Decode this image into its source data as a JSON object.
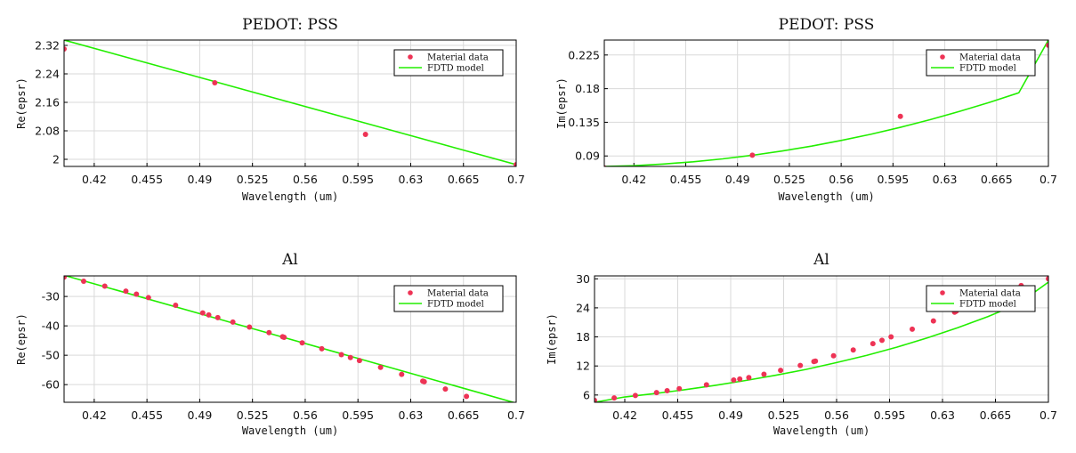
{
  "figure": {
    "colors": {
      "material_marker": "#ee3355",
      "model_line": "#22ee00",
      "grid": "#d9d9d9",
      "axis": "#000000"
    },
    "legend_placement": "top-right"
  },
  "chart_data": [
    {
      "id": "p1",
      "type": "line",
      "title": "PEDOT: PSS",
      "xlabel": "Wavelength (um)",
      "ylabel": "Re(epsr)",
      "xlim": [
        0.4,
        0.7
      ],
      "ylim": [
        1.98,
        2.335
      ],
      "xticks": [
        0.42,
        0.455,
        0.49,
        0.525,
        0.56,
        0.595,
        0.63,
        0.665,
        0.7
      ],
      "xtick_labels": [
        "0.42",
        "0.455",
        "0.49",
        "0.525",
        "0.56",
        "0.595",
        "0.63",
        "0.665",
        "0.7"
      ],
      "yticks": [
        2,
        2.08,
        2.16,
        2.24,
        2.32
      ],
      "ytick_labels": [
        "2",
        "2.08",
        "2.16",
        "2.24",
        "2.32"
      ],
      "grid": true,
      "legend_placement": "top-right",
      "series": [
        {
          "name": "Material data",
          "kind": "markers",
          "x": [
            0.4,
            0.5,
            0.6,
            0.7
          ],
          "y": [
            2.31,
            2.215,
            2.07,
            1.985
          ]
        },
        {
          "name": "FDTD model",
          "kind": "line",
          "x": [
            0.4,
            0.7
          ],
          "y": [
            2.335,
            1.985
          ]
        }
      ]
    },
    {
      "id": "p2",
      "type": "line",
      "title": "PEDOT: PSS",
      "xlabel": "Wavelength (um)",
      "ylabel": "Im(epsr)",
      "xlim": [
        0.4,
        0.7
      ],
      "ylim": [
        0.076,
        0.245
      ],
      "xticks": [
        0.42,
        0.455,
        0.49,
        0.525,
        0.56,
        0.595,
        0.63,
        0.665,
        0.7
      ],
      "xtick_labels": [
        "0.42",
        "0.455",
        "0.49",
        "0.525",
        "0.56",
        "0.595",
        "0.63",
        "0.665",
        "0.7"
      ],
      "yticks": [
        0.09,
        0.135,
        0.18,
        0.225
      ],
      "ytick_labels": [
        "0.09",
        "0.135",
        "0.18",
        "0.225"
      ],
      "grid": true,
      "legend_placement": "top-right",
      "series": [
        {
          "name": "Material data",
          "kind": "markers",
          "x": [
            0.4,
            0.5,
            0.6,
            0.7
          ],
          "y": [
            0.074,
            0.091,
            0.143,
            0.238
          ]
        },
        {
          "name": "FDTD model",
          "kind": "line",
          "x": [
            0.4,
            0.42,
            0.44,
            0.46,
            0.48,
            0.5,
            0.52,
            0.54,
            0.56,
            0.58,
            0.6,
            0.62,
            0.64,
            0.66,
            0.68,
            0.7
          ],
          "y": [
            0.076,
            0.077,
            0.0792,
            0.0822,
            0.0861,
            0.0909,
            0.0966,
            0.1032,
            0.1107,
            0.119,
            0.1283,
            0.1385,
            0.1496,
            0.1616,
            0.1745,
            0.245
          ]
        }
      ]
    },
    {
      "id": "p3",
      "type": "line",
      "title": "Al",
      "xlabel": "Wavelength (um)",
      "ylabel": "Re(epsr)",
      "xlim": [
        0.4,
        0.7
      ],
      "ylim": [
        -66,
        -23
      ],
      "xticks": [
        0.42,
        0.455,
        0.49,
        0.525,
        0.56,
        0.595,
        0.63,
        0.665,
        0.7
      ],
      "xtick_labels": [
        "0.42",
        "0.455",
        "0.49",
        "0.525",
        "0.56",
        "0.595",
        "0.63",
        "0.665",
        "0.7"
      ],
      "yticks": [
        -60,
        -50,
        -40,
        -30
      ],
      "ytick_labels": [
        "-60",
        "-50",
        "-40",
        "-30"
      ],
      "grid": true,
      "legend_placement": "top-right",
      "series": [
        {
          "name": "Material data",
          "kind": "markers",
          "x": [
            0.4,
            0.413,
            0.427,
            0.441,
            0.448,
            0.456,
            0.474,
            0.492,
            0.496,
            0.502,
            0.512,
            0.523,
            0.536,
            0.545,
            0.546,
            0.558,
            0.571,
            0.584,
            0.59,
            0.596,
            0.61,
            0.624,
            0.638,
            0.639,
            0.653,
            0.667
          ],
          "y": [
            -23.4,
            -24.8,
            -26.5,
            -28.2,
            -29.2,
            -30.4,
            -33.0,
            -35.6,
            -36.3,
            -37.2,
            -38.7,
            -40.4,
            -42.3,
            -43.7,
            -43.9,
            -45.8,
            -47.8,
            -49.8,
            -50.8,
            -51.8,
            -54.1,
            -56.5,
            -58.8,
            -59.0,
            -61.5,
            -64.0
          ]
        },
        {
          "name": "FDTD model",
          "kind": "line",
          "x": [
            0.4,
            0.7
          ],
          "y": [
            -22.8,
            -66.3
          ]
        }
      ]
    },
    {
      "id": "p4",
      "type": "line",
      "title": "Al",
      "xlabel": "Wavelength (um)",
      "ylabel": "Im(epsr)",
      "xlim": [
        0.4,
        0.7
      ],
      "ylim": [
        4.5,
        30.6
      ],
      "xticks": [
        0.42,
        0.455,
        0.49,
        0.525,
        0.56,
        0.595,
        0.63,
        0.665,
        0.7
      ],
      "xtick_labels": [
        "0.42",
        "0.455",
        "0.49",
        "0.525",
        "0.56",
        "0.595",
        "0.63",
        "0.665",
        "0.7"
      ],
      "yticks": [
        6,
        12,
        18,
        24,
        30
      ],
      "ytick_labels": [
        "6",
        "12",
        "18",
        "24",
        "30"
      ],
      "grid": true,
      "legend_placement": "top-right",
      "series": [
        {
          "name": "Material data",
          "kind": "markers",
          "x": [
            0.4,
            0.413,
            0.427,
            0.441,
            0.448,
            0.456,
            0.474,
            0.492,
            0.496,
            0.502,
            0.512,
            0.523,
            0.536,
            0.545,
            0.546,
            0.558,
            0.571,
            0.584,
            0.59,
            0.596,
            0.61,
            0.624,
            0.638,
            0.639,
            0.682,
            0.7
          ],
          "y": [
            4.9,
            5.4,
            5.9,
            6.5,
            6.9,
            7.3,
            8.1,
            9.1,
            9.3,
            9.6,
            10.3,
            11.1,
            12.1,
            12.9,
            13.0,
            14.1,
            15.3,
            16.6,
            17.3,
            18.0,
            19.6,
            21.3,
            23.1,
            23.3,
            28.6,
            30.0
          ]
        },
        {
          "name": "FDTD model",
          "kind": "line",
          "x": [
            0.4,
            0.42,
            0.44,
            0.46,
            0.48,
            0.5,
            0.52,
            0.54,
            0.56,
            0.58,
            0.6,
            0.62,
            0.64,
            0.66,
            0.68,
            0.7
          ],
          "y": [
            4.5,
            5.6,
            6.3,
            7.1,
            8.0,
            9.0,
            10.1,
            11.3,
            12.7,
            14.2,
            15.9,
            17.8,
            19.9,
            22.2,
            24.8,
            29.3
          ]
        }
      ]
    }
  ]
}
